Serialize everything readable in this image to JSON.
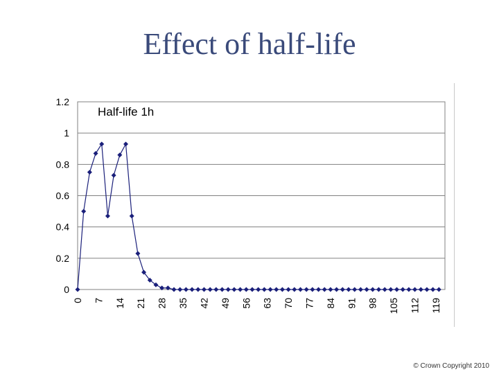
{
  "slide": {
    "title": "Effect of half-life",
    "copyright": "© Crown Copyright 2010"
  },
  "chart_data": {
    "type": "line",
    "title": "",
    "xlabel": "",
    "ylabel": "",
    "xlim": [
      0,
      122
    ],
    "ylim": [
      0,
      1.2
    ],
    "grid": true,
    "y_ticks": [
      "0",
      "0.2",
      "0.4",
      "0.6",
      "0.8",
      "1",
      "1.2"
    ],
    "x_ticks": [
      "0",
      "7",
      "14",
      "21",
      "28",
      "35",
      "42",
      "49",
      "56",
      "63",
      "70",
      "77",
      "84",
      "91",
      "98",
      "105",
      "112",
      "119"
    ],
    "annotation": "Half-life 1h",
    "series_color": "#1a1f7a",
    "series": [
      {
        "x": [
          0,
          2,
          4,
          6,
          8,
          10,
          12,
          14,
          16,
          18,
          20,
          22,
          24,
          26,
          28,
          30,
          32,
          34,
          36,
          38,
          40,
          42,
          44,
          46,
          48,
          50,
          52,
          54,
          56,
          58,
          60,
          62,
          64,
          66,
          68,
          70,
          72,
          74,
          76,
          78,
          80,
          82,
          84,
          86,
          88,
          90,
          92,
          94,
          96,
          98,
          100,
          102,
          104,
          106,
          108,
          110,
          112,
          114,
          116,
          118,
          120,
          122
        ],
        "values": [
          0,
          0.5,
          0.75,
          0.87,
          0.93,
          0.47,
          0.73,
          0.86,
          0.93,
          0.47,
          0.23,
          0.11,
          0.06,
          0.03,
          0.01,
          0.01,
          0,
          0,
          0,
          0,
          0,
          0,
          0,
          0,
          0,
          0,
          0,
          0,
          0,
          0,
          0,
          0,
          0,
          0,
          0,
          0,
          0,
          0,
          0,
          0,
          0,
          0,
          0,
          0,
          0,
          0,
          0,
          0,
          0,
          0,
          0,
          0,
          0,
          0,
          0,
          0,
          0,
          0,
          0,
          0,
          0,
          0
        ],
        "name": ""
      }
    ]
  }
}
